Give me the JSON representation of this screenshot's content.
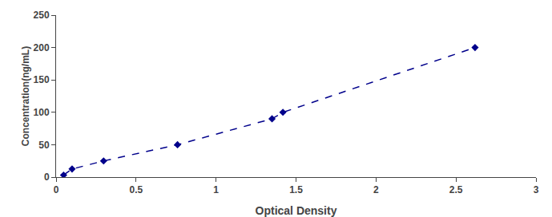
{
  "chart_data": {
    "type": "line",
    "x": [
      0.047,
      0.1,
      0.297,
      0.759,
      1.35,
      1.418,
      2.619
    ],
    "values": [
      3.125,
      12.5,
      25,
      50,
      90,
      100,
      200
    ],
    "color": "#00008B",
    "marker": "diamond",
    "line_style": "dashed",
    "xlabel": "Optical Density",
    "ylabel": "Concentration(ng/mL)",
    "xlim": [
      0,
      3
    ],
    "ylim": [
      0,
      250
    ],
    "xticks": [
      0,
      0.5,
      1,
      1.5,
      2,
      2.5,
      3
    ],
    "yticks": [
      0,
      50,
      100,
      150,
      200,
      250
    ],
    "grid": false
  }
}
